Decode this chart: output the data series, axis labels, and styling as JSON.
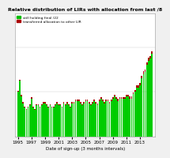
{
  "title": "Relative distribution of LIRs with allocation from last /8",
  "xlabel": "Date of sign-up (3 months intervals)",
  "legend_labels": [
    "still holding final /22",
    "transferred allocation to other LIR"
  ],
  "legend_colors": [
    "#00bb00",
    "#aa0000"
  ],
  "bar_color_green": "#00cc00",
  "bar_color_red": "#aa0000",
  "background_color": "#f0f0f0",
  "plot_bg_color": "#ffffff",
  "xlim_start": 1994.6,
  "xlim_end": 2015.2,
  "xticks": [
    1995,
    1997,
    1999,
    2001,
    2003,
    2005,
    2007,
    2009,
    2011,
    2013
  ],
  "ylim": [
    0,
    0.55
  ],
  "bar_width": 0.2,
  "quarters": [
    1995.0,
    1995.25,
    1995.5,
    1995.75,
    1996.0,
    1996.25,
    1996.5,
    1996.75,
    1997.0,
    1997.25,
    1997.5,
    1997.75,
    1998.0,
    1998.25,
    1998.5,
    1998.75,
    1999.0,
    1999.25,
    1999.5,
    1999.75,
    2000.0,
    2000.25,
    2000.5,
    2000.75,
    2001.0,
    2001.25,
    2001.5,
    2001.75,
    2002.0,
    2002.25,
    2002.5,
    2002.75,
    2003.0,
    2003.25,
    2003.5,
    2003.75,
    2004.0,
    2004.25,
    2004.5,
    2004.75,
    2005.0,
    2005.25,
    2005.5,
    2005.75,
    2006.0,
    2006.25,
    2006.5,
    2006.75,
    2007.0,
    2007.25,
    2007.5,
    2007.75,
    2008.0,
    2008.25,
    2008.5,
    2008.75,
    2009.0,
    2009.25,
    2009.5,
    2009.75,
    2010.0,
    2010.25,
    2010.5,
    2010.75,
    2011.0,
    2011.25,
    2011.5,
    2011.75,
    2012.0,
    2012.25,
    2012.5,
    2012.75,
    2013.0,
    2013.25,
    2013.5,
    2013.75,
    2014.0,
    2014.25,
    2014.5,
    2014.75
  ],
  "green_vals": [
    0.2,
    0.25,
    0.18,
    0.15,
    0.13,
    0.12,
    0.13,
    0.14,
    0.17,
    0.13,
    0.12,
    0.14,
    0.14,
    0.13,
    0.14,
    0.15,
    0.15,
    0.14,
    0.13,
    0.14,
    0.13,
    0.13,
    0.14,
    0.15,
    0.14,
    0.14,
    0.13,
    0.15,
    0.14,
    0.15,
    0.14,
    0.13,
    0.15,
    0.15,
    0.16,
    0.16,
    0.16,
    0.15,
    0.14,
    0.15,
    0.16,
    0.16,
    0.15,
    0.14,
    0.15,
    0.16,
    0.15,
    0.14,
    0.16,
    0.17,
    0.16,
    0.15,
    0.16,
    0.16,
    0.15,
    0.16,
    0.17,
    0.18,
    0.17,
    0.16,
    0.17,
    0.17,
    0.17,
    0.17,
    0.18,
    0.18,
    0.17,
    0.17,
    0.19,
    0.2,
    0.22,
    0.22,
    0.23,
    0.26,
    0.28,
    0.29,
    0.32,
    0.34,
    0.35,
    0.37
  ],
  "red_vals": [
    0.006,
    0.006,
    0.006,
    0.006,
    0.005,
    0.005,
    0.005,
    0.005,
    0.006,
    0.005,
    0.005,
    0.005,
    0.005,
    0.005,
    0.005,
    0.006,
    0.005,
    0.005,
    0.005,
    0.005,
    0.005,
    0.005,
    0.005,
    0.005,
    0.005,
    0.005,
    0.005,
    0.006,
    0.005,
    0.006,
    0.005,
    0.005,
    0.006,
    0.006,
    0.006,
    0.006,
    0.006,
    0.005,
    0.005,
    0.006,
    0.006,
    0.006,
    0.005,
    0.005,
    0.007,
    0.007,
    0.007,
    0.007,
    0.007,
    0.008,
    0.007,
    0.007,
    0.007,
    0.007,
    0.007,
    0.007,
    0.008,
    0.009,
    0.008,
    0.008,
    0.008,
    0.008,
    0.008,
    0.008,
    0.009,
    0.009,
    0.009,
    0.009,
    0.009,
    0.01,
    0.01,
    0.01,
    0.01,
    0.012,
    0.012,
    0.012,
    0.012,
    0.012,
    0.012,
    0.01
  ]
}
